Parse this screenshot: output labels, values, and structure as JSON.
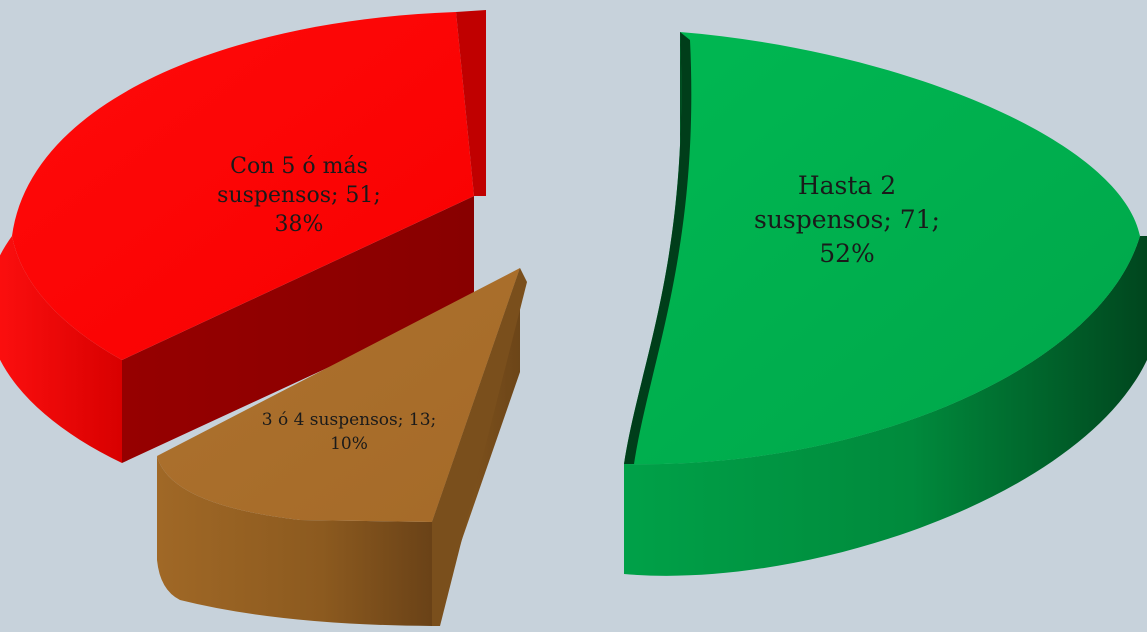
{
  "chart_data": {
    "type": "pie",
    "variant": "3d-exploded",
    "slices": [
      {
        "category": "Hasta 2 suspensos",
        "value": 71,
        "percent": "52%",
        "label_lines": [
          "Hasta 2",
          "suspensos; 71;",
          "52%"
        ],
        "color": "#00b050"
      },
      {
        "category": "3 ó 4 suspensos",
        "value": 13,
        "percent": "10%",
        "label_lines": [
          "3 ó 4 suspensos; 13;",
          "10%"
        ],
        "color": "#a86c2a"
      },
      {
        "category": "Con 5 ó más suspensos",
        "value": 51,
        "percent": "38%",
        "label_lines": [
          "Con 5 ó más",
          "suspensos; 51;",
          "38%"
        ],
        "color": "#ff0000"
      }
    ],
    "legend": "none",
    "data_label_format": "category; value; percent"
  }
}
